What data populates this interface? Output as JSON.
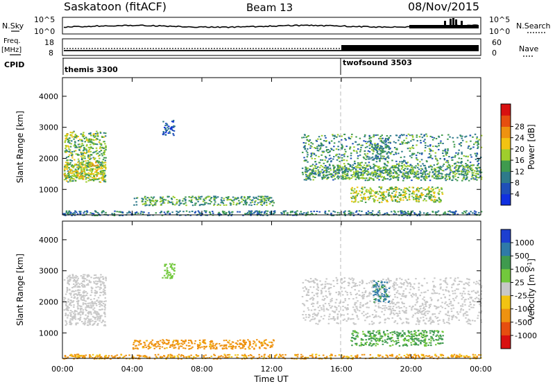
{
  "header": {
    "station": "Saskatoon (fitACF)",
    "beam": "Beam 13",
    "date": "08/Nov/2015"
  },
  "left_labels": {
    "nsky": "N.Sky",
    "nsky_hi": "10^5",
    "nsky_lo": "10^0",
    "freq": "Freq.",
    "freq_unit": "[MHz]",
    "freq_hi": "18",
    "freq_lo": "8",
    "cpid": "CPID"
  },
  "right_labels": {
    "nsearch": "N.Search",
    "nsearch_hi": "10^5",
    "nsearch_lo": "10^0",
    "nave_hi": "60",
    "nave_lo": "0",
    "nave": "Nave"
  },
  "cpid": [
    {
      "name": "themis 3300",
      "start_hour": 0
    },
    {
      "name": "twofsound 3503",
      "start_hour": 16
    }
  ],
  "chart_data": [
    {
      "type": "heatmap",
      "title": "",
      "ylabel": "Slant Range [km]",
      "xlabel": "",
      "xlim": [
        0,
        24
      ],
      "ylim": [
        180,
        4600
      ],
      "yticks": [
        "1000",
        "2000",
        "3000",
        "4000"
      ],
      "colorbar": {
        "label": "Power [dB]",
        "ticks": [
          "4",
          "8",
          "12",
          "16",
          "20",
          "24",
          "28"
        ],
        "colors": [
          "#1030e0",
          "#1f4fb8",
          "#2e7a8a",
          "#3f9a4e",
          "#9fce2c",
          "#f2c312",
          "#ee9210",
          "#e64e10",
          "#d81010"
        ]
      },
      "regions": [
        {
          "x": [
            0.05,
            2.45
          ],
          "y": [
            1250,
            2900
          ],
          "value": 16
        },
        {
          "x": [
            0.05,
            2.45
          ],
          "y": [
            1350,
            1900
          ],
          "value": 20
        },
        {
          "x": [
            4.0,
            12.1
          ],
          "y": [
            500,
            800
          ],
          "value": 14
        },
        {
          "x": [
            5.7,
            6.4
          ],
          "y": [
            2750,
            3250
          ],
          "value": 6
        },
        {
          "x": [
            13.7,
            24
          ],
          "y": [
            1300,
            2800
          ],
          "value": 12
        },
        {
          "x": [
            13.9,
            24
          ],
          "y": [
            1350,
            1800
          ],
          "value": 14
        },
        {
          "x": [
            16.5,
            21.8
          ],
          "y": [
            600,
            1100
          ],
          "value": 18
        },
        {
          "x": [
            17.8,
            18.7
          ],
          "y": [
            2000,
            2700
          ],
          "value": 12
        },
        {
          "x": [
            0,
            24
          ],
          "y": [
            180,
            330
          ],
          "value": 10
        }
      ]
    },
    {
      "type": "heatmap",
      "title": "",
      "ylabel": "Slant Range [km]",
      "xlabel": "Time UT",
      "xlim": [
        0,
        24
      ],
      "ylim": [
        180,
        4600
      ],
      "xticks": [
        "00:00",
        "04:00",
        "08:00",
        "12:00",
        "16:00",
        "20:00",
        "00:00"
      ],
      "yticks": [
        "1000",
        "2000",
        "3000",
        "4000"
      ],
      "colorbar": {
        "label": "Velocity [m s^-1]",
        "ticks": [
          "1000",
          "500",
          "100",
          "25",
          "-25",
          "-100",
          "-500",
          "-1000"
        ],
        "colors": [
          "#1d3fd0",
          "#2f7aa8",
          "#3f9a4e",
          "#72c83c",
          "#c8c8c8",
          "#f2c312",
          "#ee9210",
          "#e64e10",
          "#d81010"
        ]
      },
      "regions": [
        {
          "x": [
            0.05,
            2.45
          ],
          "y": [
            1250,
            2900
          ],
          "value": 0
        },
        {
          "x": [
            4.0,
            12.1
          ],
          "y": [
            500,
            800
          ],
          "value": -150
        },
        {
          "x": [
            5.7,
            6.4
          ],
          "y": [
            2750,
            3250
          ],
          "value": 60
        },
        {
          "x": [
            13.7,
            24
          ],
          "y": [
            1300,
            2800
          ],
          "value": 0
        },
        {
          "x": [
            16.5,
            21.8
          ],
          "y": [
            600,
            1100
          ],
          "value": 120
        },
        {
          "x": [
            17.8,
            18.7
          ],
          "y": [
            2000,
            2700
          ],
          "value": 600
        },
        {
          "x": [
            0,
            24
          ],
          "y": [
            180,
            330
          ],
          "value": -120
        }
      ]
    }
  ]
}
